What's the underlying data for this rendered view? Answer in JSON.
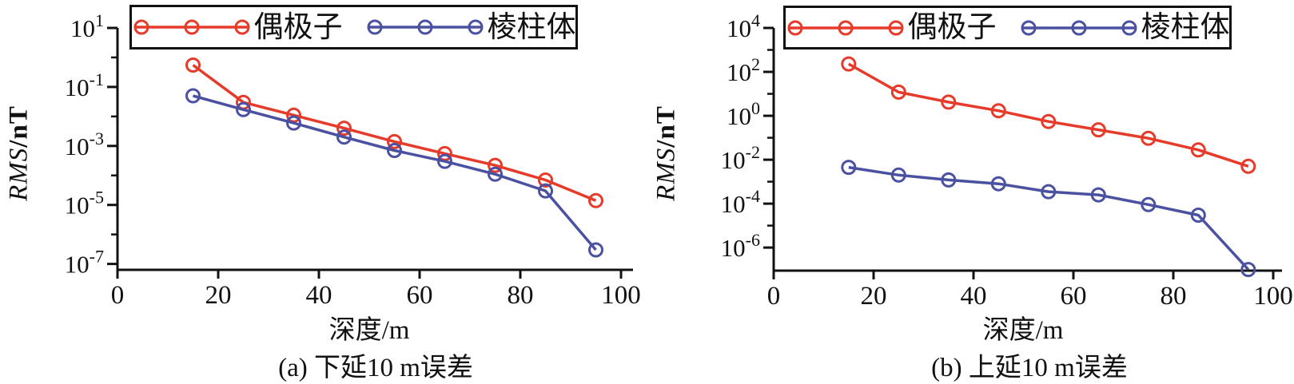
{
  "colors": {
    "dipole": "#e63b2a",
    "prism": "#4b51a1",
    "axis": "#111111"
  },
  "chart_data": [
    {
      "type": "line",
      "caption": "(a) 下延10 m误差",
      "xlabel": "深度/m",
      "ylabel_italic": "RMS",
      "ylabel_unit": "/nT",
      "x": [
        15,
        25,
        35,
        45,
        55,
        65,
        75,
        85,
        95
      ],
      "series": [
        {
          "name": "偶极子",
          "color_key": "dipole",
          "values": [
            0.55,
            0.03,
            0.011,
            0.004,
            0.0014,
            0.00055,
            0.00022,
            7e-05,
            1.4e-05
          ]
        },
        {
          "name": "棱柱体",
          "color_key": "prism",
          "values": [
            0.05,
            0.017,
            0.006,
            0.002,
            0.0007,
            0.0003,
            0.00011,
            3e-05,
            3e-07
          ]
        }
      ],
      "axes": {
        "x_range": [
          0,
          100
        ],
        "x_ticks": [
          "0",
          "20",
          "40",
          "60",
          "80",
          "100"
        ],
        "x_tick_values": [
          0,
          20,
          40,
          60,
          80,
          100
        ],
        "y_scale": "log",
        "y_major_exponents": [
          1,
          -1,
          -3,
          -5,
          -7
        ],
        "y_minor_exponents": [
          0,
          -2,
          -4,
          -6
        ],
        "y_top_exponent": 1,
        "y_bottom_exponent": -7.2,
        "grid": false,
        "legend_position": "top"
      }
    },
    {
      "type": "line",
      "caption": "(b) 上延10 m误差",
      "xlabel": "深度/m",
      "ylabel_italic": "RMS",
      "ylabel_unit": "/nT",
      "x": [
        15,
        25,
        35,
        45,
        55,
        65,
        75,
        85,
        95
      ],
      "series": [
        {
          "name": "偶极子",
          "color_key": "dipole",
          "values": [
            230,
            12,
            4.2,
            1.7,
            0.55,
            0.23,
            0.095,
            0.028,
            0.005
          ]
        },
        {
          "name": "棱柱体",
          "color_key": "prism",
          "values": [
            0.0045,
            0.002,
            0.0012,
            0.0008,
            0.00035,
            0.00025,
            9e-05,
            3e-05,
            1e-07
          ]
        }
      ],
      "axes": {
        "x_range": [
          0,
          100
        ],
        "x_ticks": [
          "0",
          "20",
          "40",
          "60",
          "80",
          "100"
        ],
        "x_tick_values": [
          0,
          20,
          40,
          60,
          80,
          100
        ],
        "y_scale": "log",
        "y_major_exponents": [
          4,
          2,
          0,
          -2,
          -4,
          -6
        ],
        "y_minor_exponents": [
          3,
          1,
          -1,
          -3,
          -5
        ],
        "y_top_exponent": 4,
        "y_bottom_exponent": -7.05,
        "grid": false,
        "legend_position": "top"
      }
    }
  ]
}
